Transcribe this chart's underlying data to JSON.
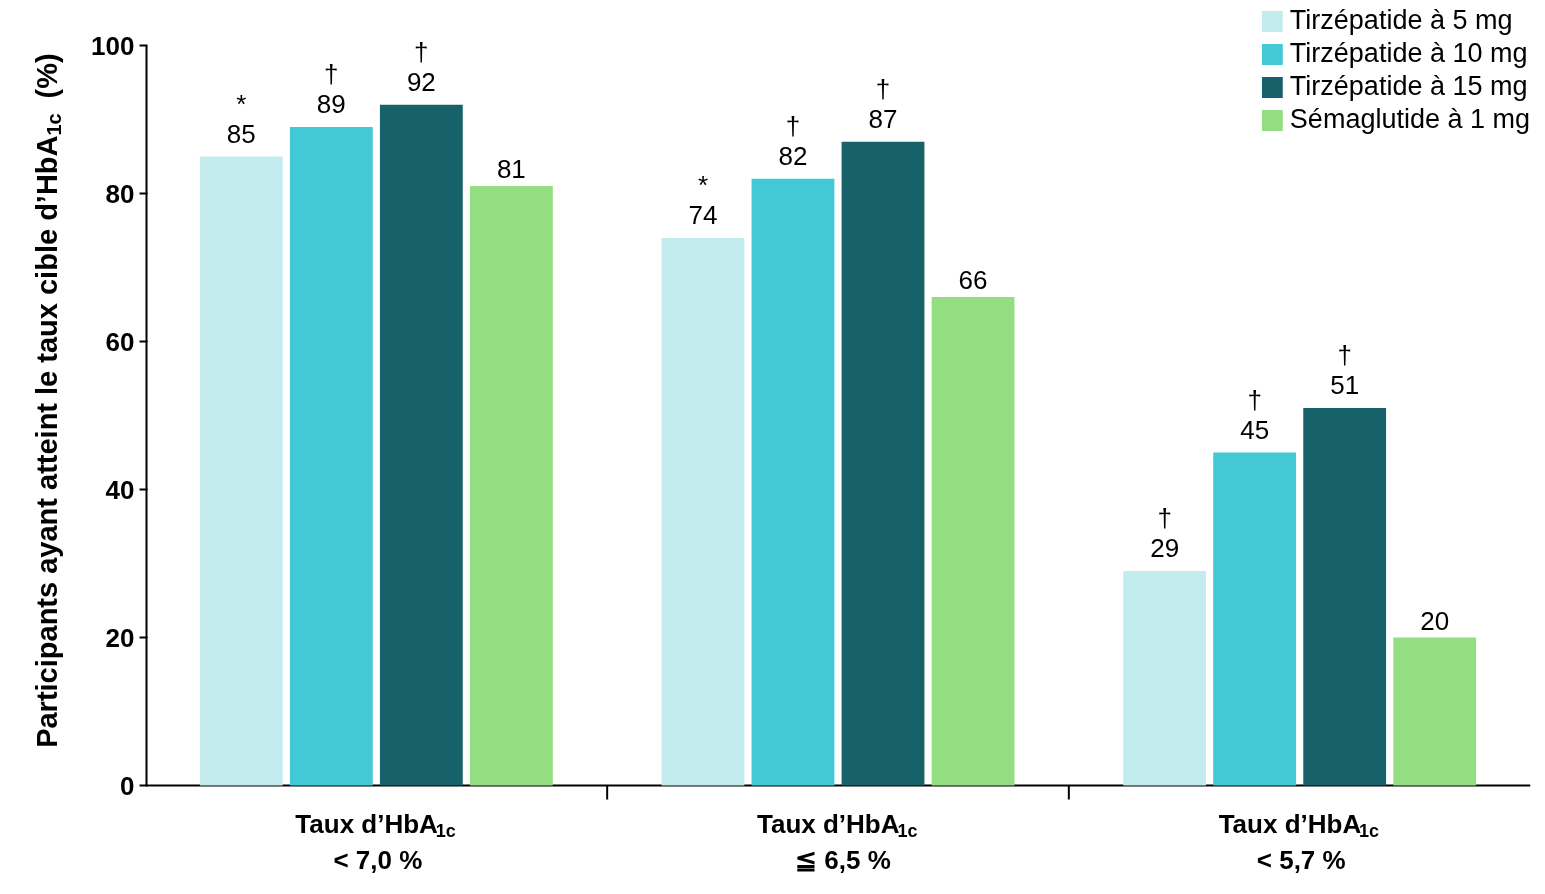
{
  "chart_data": {
    "type": "bar",
    "ylabel": "Participants ayant atteint le taux cible d’HbA$_{1c}$ (%)",
    "categories": [
      "Taux d’HbA$_{1c}$\n< 7,0 %",
      "Taux d’HbA$_{1c}$\n≦ 6,5 %",
      "Taux d’HbA$_{1c}$\n< 5,7 %"
    ],
    "series": [
      {
        "name": "Tirzépatide à 5 mg",
        "color": "#c3ecef",
        "values": [
          85,
          74,
          29
        ],
        "value_labels": [
          "*\n85",
          "*\n74",
          "†\n29"
        ]
      },
      {
        "name": "Tirzépatide à 10 mg",
        "color": "#43c9d6",
        "values": [
          89,
          82,
          45
        ],
        "value_labels": [
          "†\n89",
          "†\n82",
          "†\n45"
        ]
      },
      {
        "name": "Tirzépatide à 15 mg",
        "color": "#17616a",
        "values": [
          92,
          87,
          51
        ],
        "value_labels": [
          "†\n92",
          "†\n87",
          "†\n51"
        ]
      },
      {
        "name": "Sémaglutide à 1 mg",
        "color": "#93de80",
        "values": [
          81,
          66,
          20
        ],
        "value_labels": [
          "81",
          "66",
          "20"
        ]
      }
    ],
    "ylim": [
      0,
      100
    ],
    "yticks": [
      0,
      20,
      40,
      60,
      80,
      100
    ],
    "grid": false,
    "legend": "top right"
  }
}
